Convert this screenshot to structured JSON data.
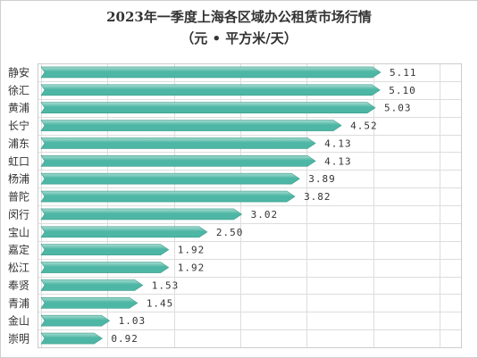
{
  "chart_data": {
    "type": "bar",
    "orientation": "horizontal",
    "title": "2023年一季度上海各区域办公租赁市场行情",
    "subtitle": "（元 • 平方米/天）",
    "categories": [
      "静安",
      "徐汇",
      "黄浦",
      "长宁",
      "浦东",
      "虹口",
      "杨浦",
      "普陀",
      "闵行",
      "宝山",
      "嘉定",
      "松江",
      "奉贤",
      "青浦",
      "金山",
      "崇明"
    ],
    "values": [
      5.11,
      5.1,
      5.03,
      4.52,
      4.13,
      4.13,
      3.89,
      3.82,
      3.02,
      2.5,
      1.92,
      1.92,
      1.53,
      1.45,
      1.03,
      0.92
    ],
    "value_labels": [
      "5.11",
      "5.10",
      "5.03",
      "4.52",
      "4.13",
      "4.13",
      "3.89",
      "3.82",
      "3.02",
      "2.50",
      "1.92",
      "1.92",
      "1.53",
      "1.45",
      "1.03",
      "0.92"
    ],
    "xlim": [
      0,
      6
    ],
    "grid": true,
    "bar_color": "#4db6a4",
    "bar_highlight": "#a6dcd2"
  }
}
